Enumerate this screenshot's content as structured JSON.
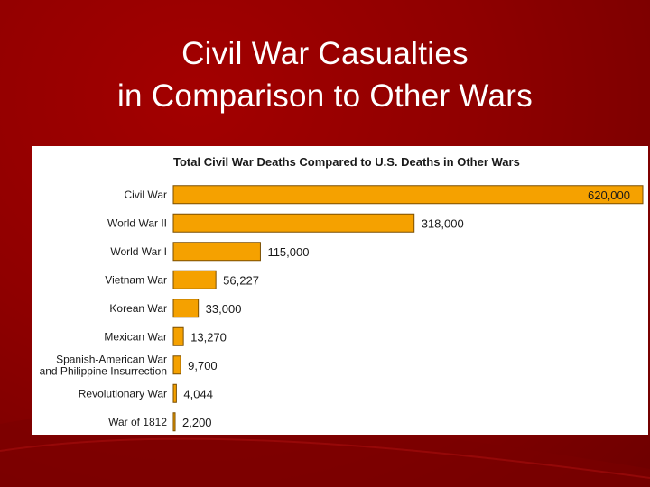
{
  "slide": {
    "title_line1": "Civil War Casualties",
    "title_line2": "in Comparison to Other Wars",
    "background_color": "#8f0000",
    "title_color": "#ffffff"
  },
  "chart_data": {
    "type": "bar",
    "orientation": "horizontal",
    "title": "Total Civil War Deaths Compared to U.S. Deaths in Other Wars",
    "xlabel": "",
    "ylabel": "",
    "xlim": [
      0,
      620000
    ],
    "grid": false,
    "legend": "none",
    "bar_color": "#f5a100",
    "bar_stroke": "#7a4e00",
    "categories": [
      [
        "Civil War"
      ],
      [
        "World War II"
      ],
      [
        "World War I"
      ],
      [
        "Vietnam War"
      ],
      [
        "Korean War"
      ],
      [
        "Mexican War"
      ],
      [
        "Spanish-American War",
        "and Philippine Insurrection"
      ],
      [
        "Revolutionary War"
      ],
      [
        "War of 1812"
      ]
    ],
    "values": [
      620000,
      318000,
      115000,
      56227,
      33000,
      13270,
      9700,
      4044,
      2200
    ],
    "value_labels": [
      "620,000",
      "318,000",
      "115,000",
      "56,227",
      "33,000",
      "13,270",
      "9,700",
      "4,044",
      "2,200"
    ]
  }
}
